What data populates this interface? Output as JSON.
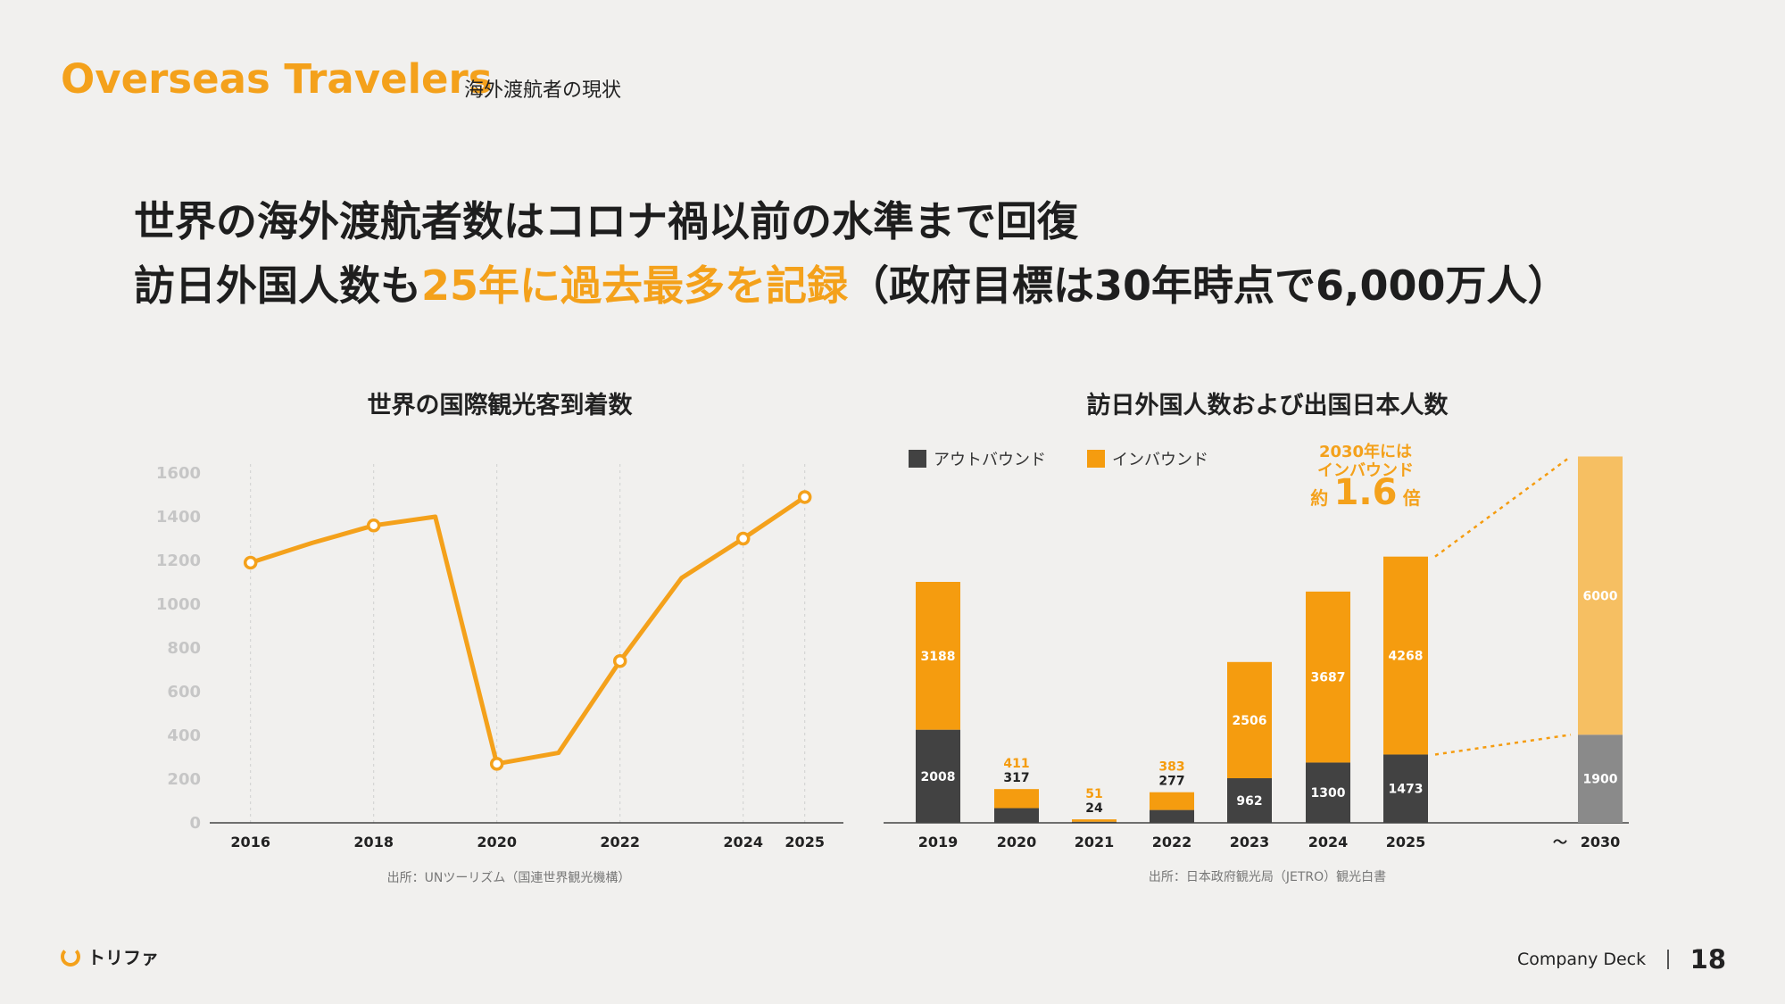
{
  "header": {
    "title": "Overseas Travelers",
    "subtitle": "海外渡航者の現状"
  },
  "headline": {
    "line1": "世界の海外渡航者数はコロナ禍以前の水準まで回復",
    "line2_a": "訪日外国人数も",
    "line2_highlight": "25年に過去最多を記録",
    "line2_b": "（政府目標は30年時点で6,000万人）"
  },
  "colors": {
    "accent": "#f4a11b",
    "outbound": "#424242",
    "inbound": "#f59c0f",
    "forecast_inbound": "#f6bf62",
    "forecast_outbound": "#8a8a8a"
  },
  "chart_data": [
    {
      "type": "line",
      "title": "世界の国際観光客到着数",
      "source": "出所：UNツーリズム（国連世界観光機構）",
      "x": [
        2016,
        2017,
        2018,
        2019,
        2020,
        2021,
        2022,
        2023,
        2024,
        2025
      ],
      "values": [
        1190,
        1280,
        1360,
        1400,
        270,
        320,
        740,
        1120,
        1300,
        1490
      ],
      "marked_points": [
        2016,
        2018,
        2020,
        2022,
        2024,
        2025
      ],
      "xticks": [
        "2016",
        "2018",
        "2020",
        "2022",
        "2024",
        "2025"
      ],
      "yticks": [
        "0",
        "200",
        "400",
        "600",
        "800",
        "1000",
        "1200",
        "1400",
        "1600"
      ],
      "ylim": [
        0,
        1600
      ],
      "grid": "vertical-dashed",
      "color": "#f4a11b"
    },
    {
      "type": "bar",
      "stacked": true,
      "title": "訪日外国人数および出国日本人数",
      "source": "出所：日本政府観光局（JETRO）観光白書",
      "categories": [
        "2019",
        "2020",
        "2021",
        "2022",
        "2023",
        "2024",
        "2025",
        "2030"
      ],
      "gap_marker": "〜",
      "series": [
        {
          "name": "アウトバウンド",
          "values": [
            2008,
            317,
            24,
            277,
            962,
            1300,
            1473,
            1900
          ]
        },
        {
          "name": "インバウンド",
          "values": [
            3188,
            411,
            51,
            383,
            2506,
            3687,
            4268,
            6000
          ]
        }
      ],
      "ylim": [
        0,
        8000
      ],
      "legend": "top-left",
      "callout": {
        "line1": "2030年には",
        "line2": "インバウンド",
        "prefix": "約",
        "multiplier": "1.6",
        "suffix": "倍"
      }
    }
  ],
  "footer": {
    "logo_text": "トリファ",
    "deck_label": "Company Deck",
    "page_number": "18"
  }
}
